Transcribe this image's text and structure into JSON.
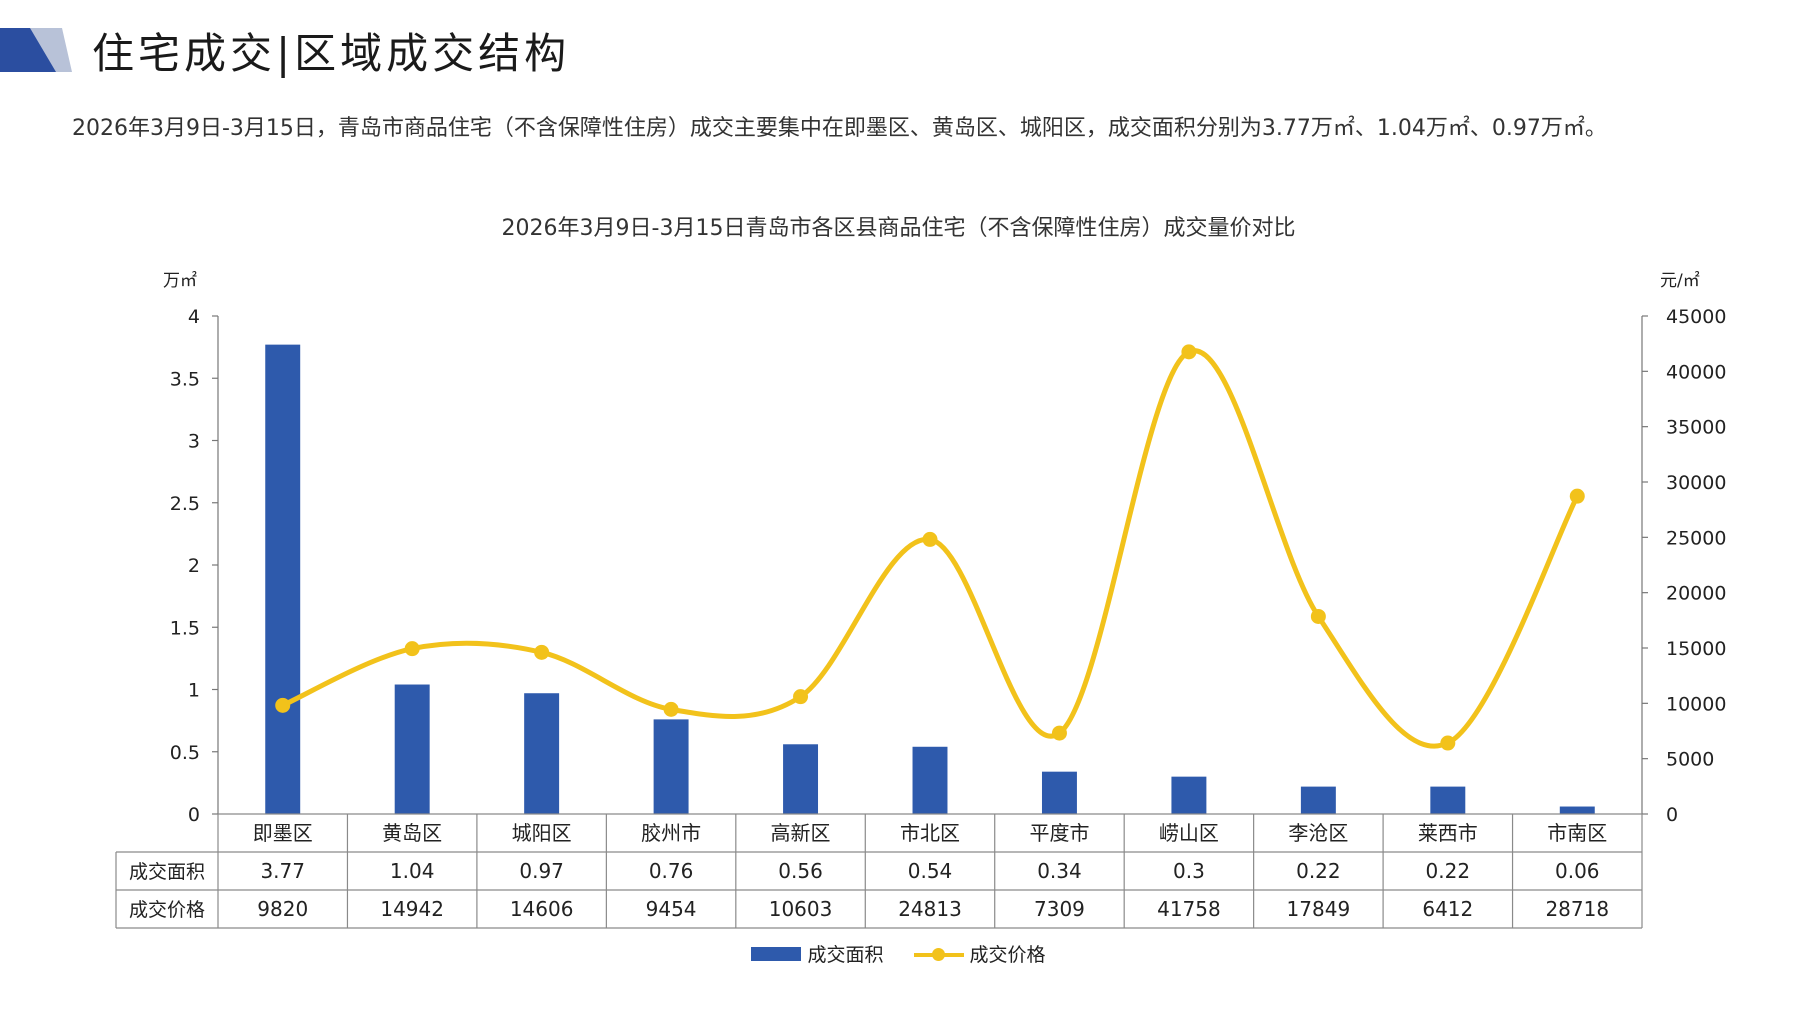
{
  "header": {
    "title": "住宅成交|区域成交结构",
    "summary": "2026年3月9日-3月15日，青岛市商品住宅（不含保障性住房）成交主要集中在即墨区、黄岛区、城阳区，成交面积分别为3.77万㎡、1.04万㎡、0.97万㎡。"
  },
  "colors": {
    "bar": "#2e5aac",
    "line": "#f2c21b",
    "mark_dark": "#2b4ea0",
    "mark_light": "#b8c2d8"
  },
  "chart_data": {
    "type": "bar",
    "title": "2026年3月9日-3月15日青岛市各区县商品住宅（不含保障性住房）成交量价对比",
    "y_left_unit": "万㎡",
    "y_right_unit": "元/㎡",
    "ylim_left": [
      0,
      4
    ],
    "ylim_right": [
      0,
      45000
    ],
    "y_left_ticks": [
      "0",
      "0.5",
      "1",
      "1.5",
      "2",
      "2.5",
      "3",
      "3.5",
      "4"
    ],
    "y_right_ticks": [
      "0",
      "5000",
      "10000",
      "15000",
      "20000",
      "25000",
      "30000",
      "35000",
      "40000",
      "45000"
    ],
    "categories": [
      "即墨区",
      "黄岛区",
      "城阳区",
      "胶州市",
      "高新区",
      "市北区",
      "平度市",
      "崂山区",
      "李沧区",
      "莱西市",
      "市南区"
    ],
    "series": [
      {
        "name": "成交面积",
        "type": "bar",
        "axis": "left",
        "values": [
          3.77,
          1.04,
          0.97,
          0.76,
          0.56,
          0.54,
          0.34,
          0.3,
          0.22,
          0.22,
          0.06
        ]
      },
      {
        "name": "成交价格",
        "type": "line",
        "axis": "right",
        "values": [
          9820,
          14942,
          14606,
          9454,
          10603,
          24813,
          7309,
          41758,
          17849,
          6412,
          28718
        ]
      }
    ],
    "table_rows": [
      {
        "label": "成交面积",
        "cells": [
          "3.77",
          "1.04",
          "0.97",
          "0.76",
          "0.56",
          "0.54",
          "0.34",
          "0.3",
          "0.22",
          "0.22",
          "0.06"
        ]
      },
      {
        "label": "成交价格",
        "cells": [
          "9820",
          "14942",
          "14606",
          "9454",
          "10603",
          "24813",
          "7309",
          "41758",
          "17849",
          "6412",
          "28718"
        ]
      }
    ],
    "legend": [
      "成交面积",
      "成交价格"
    ],
    "legend_position": "bottom",
    "grid": false
  }
}
